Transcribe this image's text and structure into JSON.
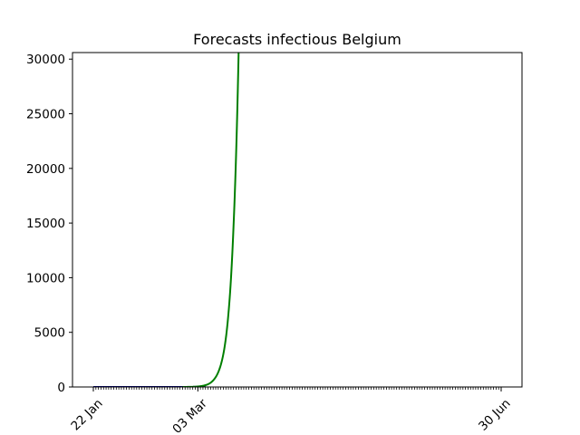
{
  "chart_data": {
    "type": "line",
    "title": "Forecasts infectious Belgium",
    "xlabel": "",
    "ylabel": "",
    "x_start": "2020-01-22",
    "x_end": "2020-06-30",
    "x_ticks_labeled": [
      {
        "date": "2020-01-22",
        "label": "22 Jan"
      },
      {
        "date": "2020-03-03",
        "label": "03 Mar"
      },
      {
        "date": "2020-06-30",
        "label": "30 Jun"
      }
    ],
    "y_ticks": [
      0,
      5000,
      10000,
      15000,
      20000,
      25000,
      30000
    ],
    "ylim": [
      0,
      30600
    ],
    "grid": false,
    "series": [
      {
        "color": "#00007f",
        "points": [
          {
            "x": "2020-01-22",
            "y": 0
          },
          {
            "x": "2020-02-05",
            "y": 0
          },
          {
            "x": "2020-02-19",
            "y": 0
          },
          {
            "x": "2020-02-26",
            "y": 0
          },
          {
            "x": "2020-03-01",
            "y": 5
          },
          {
            "x": "2020-03-04",
            "y": 20
          },
          {
            "x": "2020-03-06",
            "y": 50
          }
        ]
      },
      {
        "color": "#007f00",
        "points": [
          {
            "x": "2020-02-26",
            "y": 2
          },
          {
            "x": "2020-03-01",
            "y": 15
          },
          {
            "x": "2020-03-03",
            "y": 45
          },
          {
            "x": "2020-03-05",
            "y": 110
          },
          {
            "x": "2020-03-07",
            "y": 250
          },
          {
            "x": "2020-03-09",
            "y": 600
          },
          {
            "x": "2020-03-11",
            "y": 1350
          },
          {
            "x": "2020-03-13",
            "y": 3000
          },
          {
            "x": "2020-03-15",
            "y": 6700
          },
          {
            "x": "2020-03-17",
            "y": 14700
          },
          {
            "x": "2020-03-19",
            "y": 30600
          }
        ]
      }
    ]
  }
}
